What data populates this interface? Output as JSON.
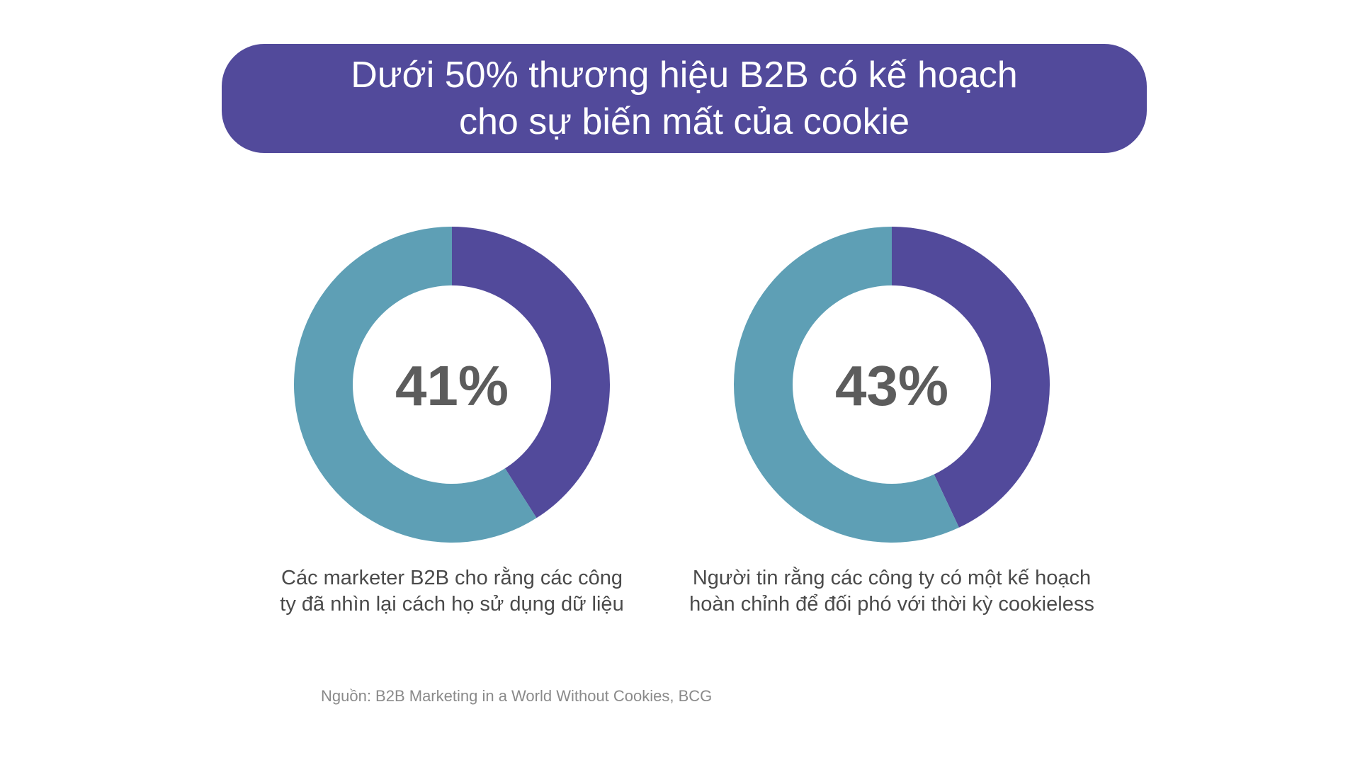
{
  "title": {
    "lines": [
      "Dưới 50% thương hiệu B2B có kế hoạch",
      "cho sự biến mất của cookie"
    ]
  },
  "colors": {
    "banner": "#524a9b",
    "highlight": "#524a9b",
    "remainder": "#5e9fb5",
    "value_text": "#5c5c5c",
    "caption_text": "#4a4a4a",
    "source_text": "#8a8a8a"
  },
  "chart_data": [
    {
      "type": "pie",
      "style": "donut",
      "center_label": "41%",
      "values": [
        41,
        59
      ],
      "value_colors": [
        "#524a9b",
        "#5e9fb5"
      ],
      "caption_lines": [
        "Các marketer B2B cho rằng các công",
        "ty đã nhìn lại cách họ sử dụng dữ liệu"
      ]
    },
    {
      "type": "pie",
      "style": "donut",
      "center_label": "43%",
      "values": [
        43,
        57
      ],
      "value_colors": [
        "#524a9b",
        "#5e9fb5"
      ],
      "caption_lines": [
        "Người tin rằng các công ty có một kế hoạch",
        "hoàn chỉnh để đối phó với thời kỳ cookieless"
      ]
    }
  ],
  "source": "Nguồn: B2B Marketing in a World Without Cookies, BCG"
}
